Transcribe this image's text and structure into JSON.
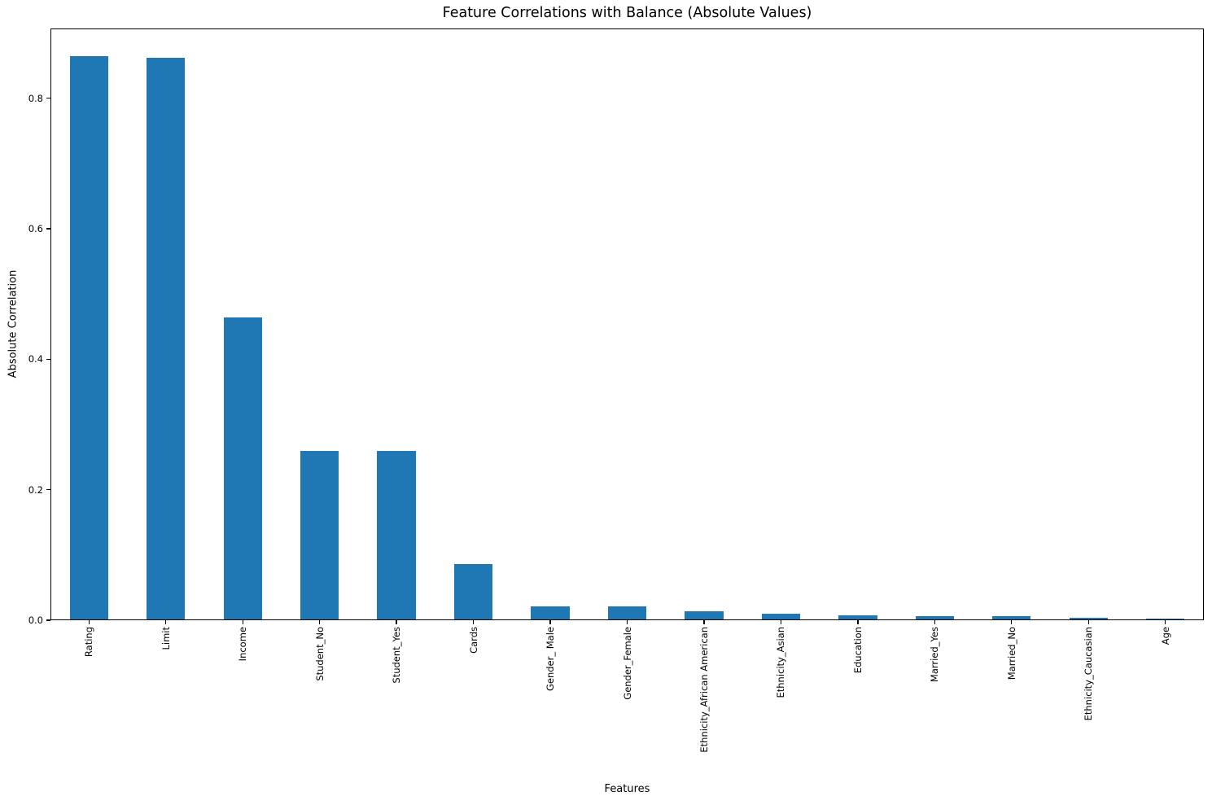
{
  "chart_data": {
    "type": "bar",
    "title": "Feature Correlations with Balance (Absolute Values)",
    "xlabel": "Features",
    "ylabel": "Absolute Correlation",
    "categories": [
      "Rating",
      "Limit",
      "Income",
      "Student_No",
      "Student_Yes",
      "Cards",
      "Gender_ Male",
      "Gender_Female",
      "Ethnicity_African American",
      "Ethnicity_Asian",
      "Education",
      "Married_Yes",
      "Married_No",
      "Ethnicity_Caucasian",
      "Age"
    ],
    "values": [
      0.864,
      0.862,
      0.464,
      0.259,
      0.259,
      0.086,
      0.021,
      0.021,
      0.014,
      0.01,
      0.008,
      0.006,
      0.006,
      0.004,
      0.003
    ],
    "ylim": [
      0,
      0.907
    ],
    "yticks": [
      0.0,
      0.2,
      0.4,
      0.6,
      0.8
    ],
    "grid": false,
    "legend_position": "none",
    "bar_color": "#1f77b4",
    "xtick_rotation_deg": 90
  }
}
